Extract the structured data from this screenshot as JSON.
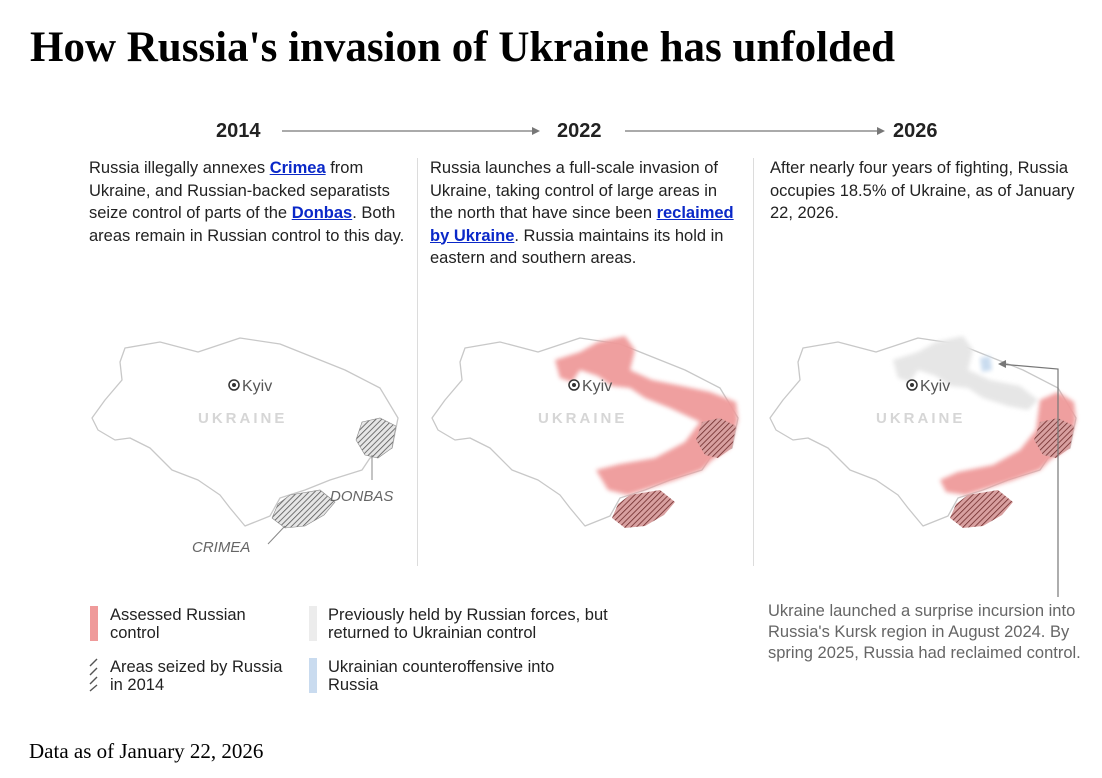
{
  "title": "How Russia's invasion of Ukraine has unfolded",
  "timeline": [
    {
      "year": "2014",
      "text": [
        {
          "t": "Russia illegally annexes "
        },
        {
          "t": "Crimea",
          "link": true
        },
        {
          "t": " from Ukraine, and Russian-backed separatists seize control of parts of the "
        },
        {
          "t": "Donbas",
          "link": true
        },
        {
          "t": ". Both areas remain in Russian control to this day."
        }
      ]
    },
    {
      "year": "2022",
      "text": [
        {
          "t": "Russia launches a full-scale invasion of Ukraine, taking control of large areas in the north that have since been "
        },
        {
          "t": "reclaimed by Ukraine",
          "link": true
        },
        {
          "t": ". Russia maintains its hold in eastern and southern areas."
        }
      ]
    },
    {
      "year": "2026",
      "text": [
        {
          "t": "After nearly four years of fighting, Russia occupies 18.5% of Ukraine, as of January 22, 2026."
        }
      ]
    }
  ],
  "maps": {
    "capital_label": "Kyiv",
    "country_label": "UKRAINE",
    "donbas_label": "DONBAS",
    "crimea_label": "CRIMEA"
  },
  "legend": {
    "assessed": "Assessed Russian control",
    "seized2014": "Areas seized by Russia in 2014",
    "returned": "Previously held by Russian forces, but returned to Ukrainian control",
    "counteroffensive": "Ukrainian counteroffensive into Russia"
  },
  "note": "Ukraine launched a surprise incursion into Russia's Kursk region in August 2024. By spring 2025, Russia had reclaimed control.",
  "footer": "Data as of January 22, 2026",
  "colors": {
    "russian_control": "#ef9a9a",
    "seized_hatch": "#8a3a3a",
    "returned": "#e8e8e8",
    "counteroffensive": "#c9dbef",
    "outline": "#c8c8c8",
    "link": "#0a28c8"
  }
}
